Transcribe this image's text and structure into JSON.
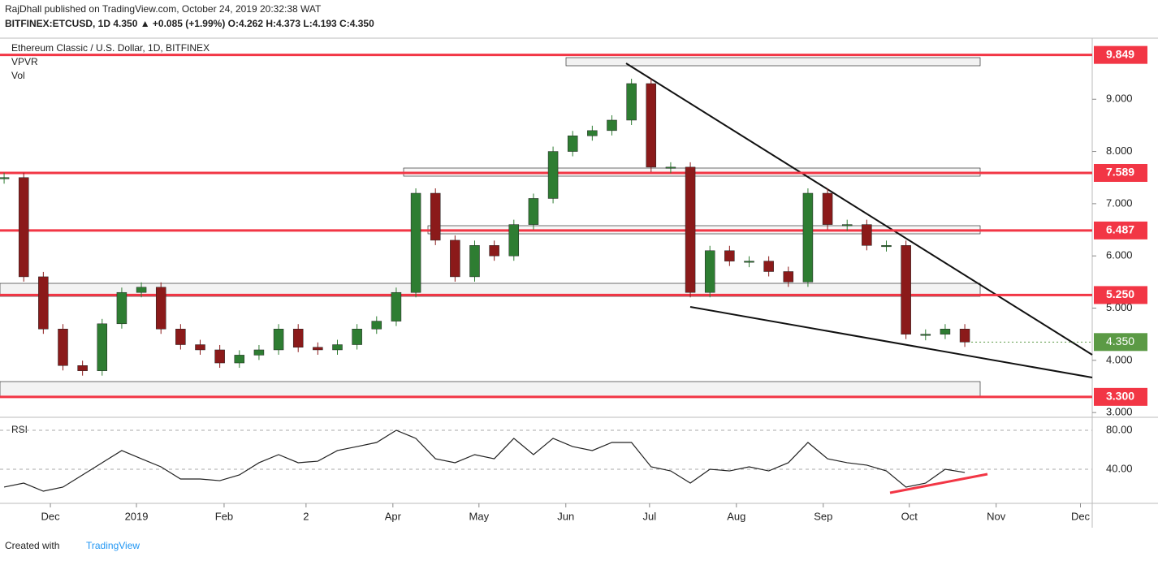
{
  "header": {
    "line1": "RajDhall published on TradingView.com, October 24, 2019 20:32:38 WAT",
    "line2": "BITFINEX:ETCUSD, 1D 4.350 ▲ +0.085 (+1.99%) O:4.262 H:4.373 L:4.193 C:4.350"
  },
  "legend": {
    "symbol": "Ethereum Classic / U.S. Dollar, 1D, BITFINEX",
    "vpvr": "VPVR",
    "vol": "Vol",
    "rsi": "RSI"
  },
  "footer": {
    "created": "Created with",
    "brand": "TradingView"
  },
  "chart_data": {
    "type": "candlestick",
    "series": [
      {
        "name": "ETCUSD",
        "color": "#2e7d32",
        "down_color": "#8b1a1a",
        "values": [
          7.5,
          5.6,
          4.6,
          3.9,
          3.8,
          4.7,
          5.3,
          5.4,
          4.6,
          4.3,
          4.2,
          3.95,
          4.1,
          4.2,
          4.6,
          4.25,
          4.2,
          4.3,
          4.6,
          4.75,
          5.3,
          7.2,
          6.3,
          5.6,
          6.2,
          6.0,
          6.6,
          7.1,
          8.0,
          8.3,
          8.4,
          8.6,
          9.3,
          7.7,
          7.7,
          5.3,
          6.1,
          5.9,
          5.9,
          5.7,
          5.5,
          7.2,
          6.6,
          6.6,
          6.2,
          6.2,
          4.5,
          4.5,
          4.6,
          4.35
        ]
      }
    ],
    "xlim": [
      -0.21,
      55.5
    ],
    "xticks": [
      {
        "value": 2.36,
        "label": "Dec"
      },
      {
        "value": 6.75,
        "label": "2019"
      },
      {
        "value": 11.22,
        "label": "Feb"
      },
      {
        "value": 15.4,
        "label": "2"
      },
      {
        "value": 19.83,
        "label": "Apr"
      },
      {
        "value": 24.22,
        "label": "May"
      },
      {
        "value": 28.65,
        "label": "Jun"
      },
      {
        "value": 32.92,
        "label": "Jul"
      },
      {
        "value": 37.35,
        "label": "Aug"
      },
      {
        "value": 41.78,
        "label": "Sep"
      },
      {
        "value": 46.17,
        "label": "Oct"
      },
      {
        "value": 50.6,
        "label": "Nov"
      },
      {
        "value": 54.9,
        "label": "Dec"
      }
    ],
    "ylim": [
      2.94,
      10.17
    ],
    "yticks": [
      {
        "value": 3,
        "label": "3.000"
      },
      {
        "value": 4,
        "label": "4.000"
      },
      {
        "value": 5,
        "label": "5.000"
      },
      {
        "value": 6,
        "label": "6.000"
      },
      {
        "value": 7,
        "label": "7.000"
      },
      {
        "value": 8,
        "label": "8.000"
      },
      {
        "value": 9,
        "label": "9.000"
      }
    ],
    "levels": [
      9.849,
      7.589,
      6.487,
      {
        "value": 5.25,
        "label": "5.250"
      },
      {
        "value": 3.3,
        "label": "3.300"
      }
    ],
    "level_color": "#f23645",
    "last_price": {
      "value": 4.35,
      "label": "4.350"
    },
    "last_color": "#5b9a45",
    "rsi": {
      "values": [
        21.7,
        25.8,
        17.5,
        21.7,
        34.2,
        46.7,
        59.2,
        50.8,
        42.5,
        30,
        30,
        28.3,
        34.2,
        46.7,
        55,
        46.7,
        48.3,
        59.2,
        63.3,
        67.5,
        80,
        71.7,
        50.8,
        46.7,
        55,
        50.8,
        71.7,
        55,
        71.7,
        63.3,
        59.2,
        67.5,
        67.5,
        42.5,
        38.3,
        25.8,
        40,
        38.3,
        42.5,
        38.3,
        46.7,
        67.5,
        50.8,
        46.7,
        44.2,
        38.3,
        21.7,
        25.8,
        40,
        36.7
      ],
      "ylim": [
        5,
        92.5
      ],
      "yticks": [
        {
          "value": 80,
          "label": "80.00"
        },
        {
          "value": 40,
          "label": "40.00"
        }
      ]
    }
  }
}
